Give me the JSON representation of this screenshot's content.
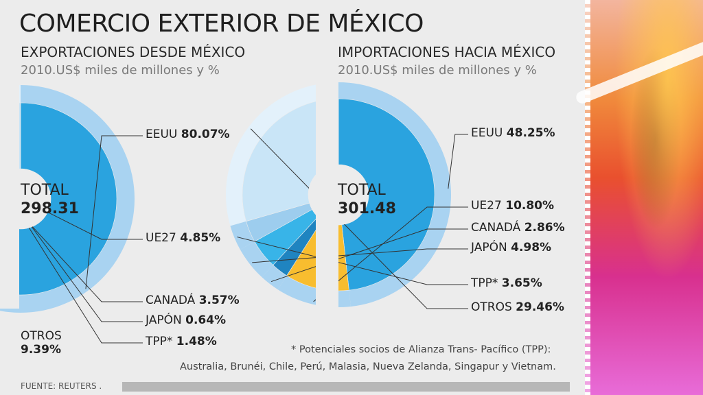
{
  "title": "COMERCIO EXTERIOR DE MÉXICO",
  "source": "FUENTE: REUTERS .",
  "footnote": {
    "line1": "* Potenciales socios de Alianza Trans- Pacífico (TPP):",
    "line2": "Australia, Brunéi, Chile, Perú, Malasia, Nueva Zelanda, Singapur y Vietnam."
  },
  "colors": {
    "EEUU": "#2aa3df",
    "UE27": "#f8bd2f",
    "CANADÁ": "#1f84c0",
    "JAPÓN": "#38b4e8",
    "TPP": "#9dcdee",
    "OTROS": "#c9e5f7",
    "ring": "#a9d3f1"
  },
  "chart_data": [
    {
      "type": "pie",
      "title": "EXPORTACIONES DESDE MÉXICO",
      "subtitle": "2010.US$ miles de millones y %",
      "total_label": "TOTAL",
      "total_value": "298.31",
      "slices": [
        {
          "name": "EEUU",
          "value": 80.07,
          "value_text": "80.07%"
        },
        {
          "name": "UE27",
          "value": 4.85,
          "value_text": "4.85%"
        },
        {
          "name": "CANADÁ",
          "value": 3.57,
          "value_text": "3.57%"
        },
        {
          "name": "JAPÓN",
          "value": 0.64,
          "value_text": "0.64%"
        },
        {
          "name": "TPP*",
          "value": 1.48,
          "value_text": "1.48%"
        },
        {
          "name": "OTROS",
          "value": 9.39,
          "value_text": "9.39%"
        }
      ]
    },
    {
      "type": "pie",
      "title": "IMPORTACIONES HACIA MÉXICO",
      "subtitle": "2010.US$ miles de millones y %",
      "total_label": "TOTAL",
      "total_value": "301.48",
      "slices": [
        {
          "name": "EEUU",
          "value": 48.25,
          "value_text": "48.25%"
        },
        {
          "name": "UE27",
          "value": 10.8,
          "value_text": "10.80%"
        },
        {
          "name": "CANADÁ",
          "value": 2.86,
          "value_text": "2.86%"
        },
        {
          "name": "JAPÓN",
          "value": 4.98,
          "value_text": "4.98%"
        },
        {
          "name": "TPP*",
          "value": 3.65,
          "value_text": "3.65%"
        },
        {
          "name": "OTROS",
          "value": 29.46,
          "value_text": "29.46%"
        }
      ]
    }
  ]
}
